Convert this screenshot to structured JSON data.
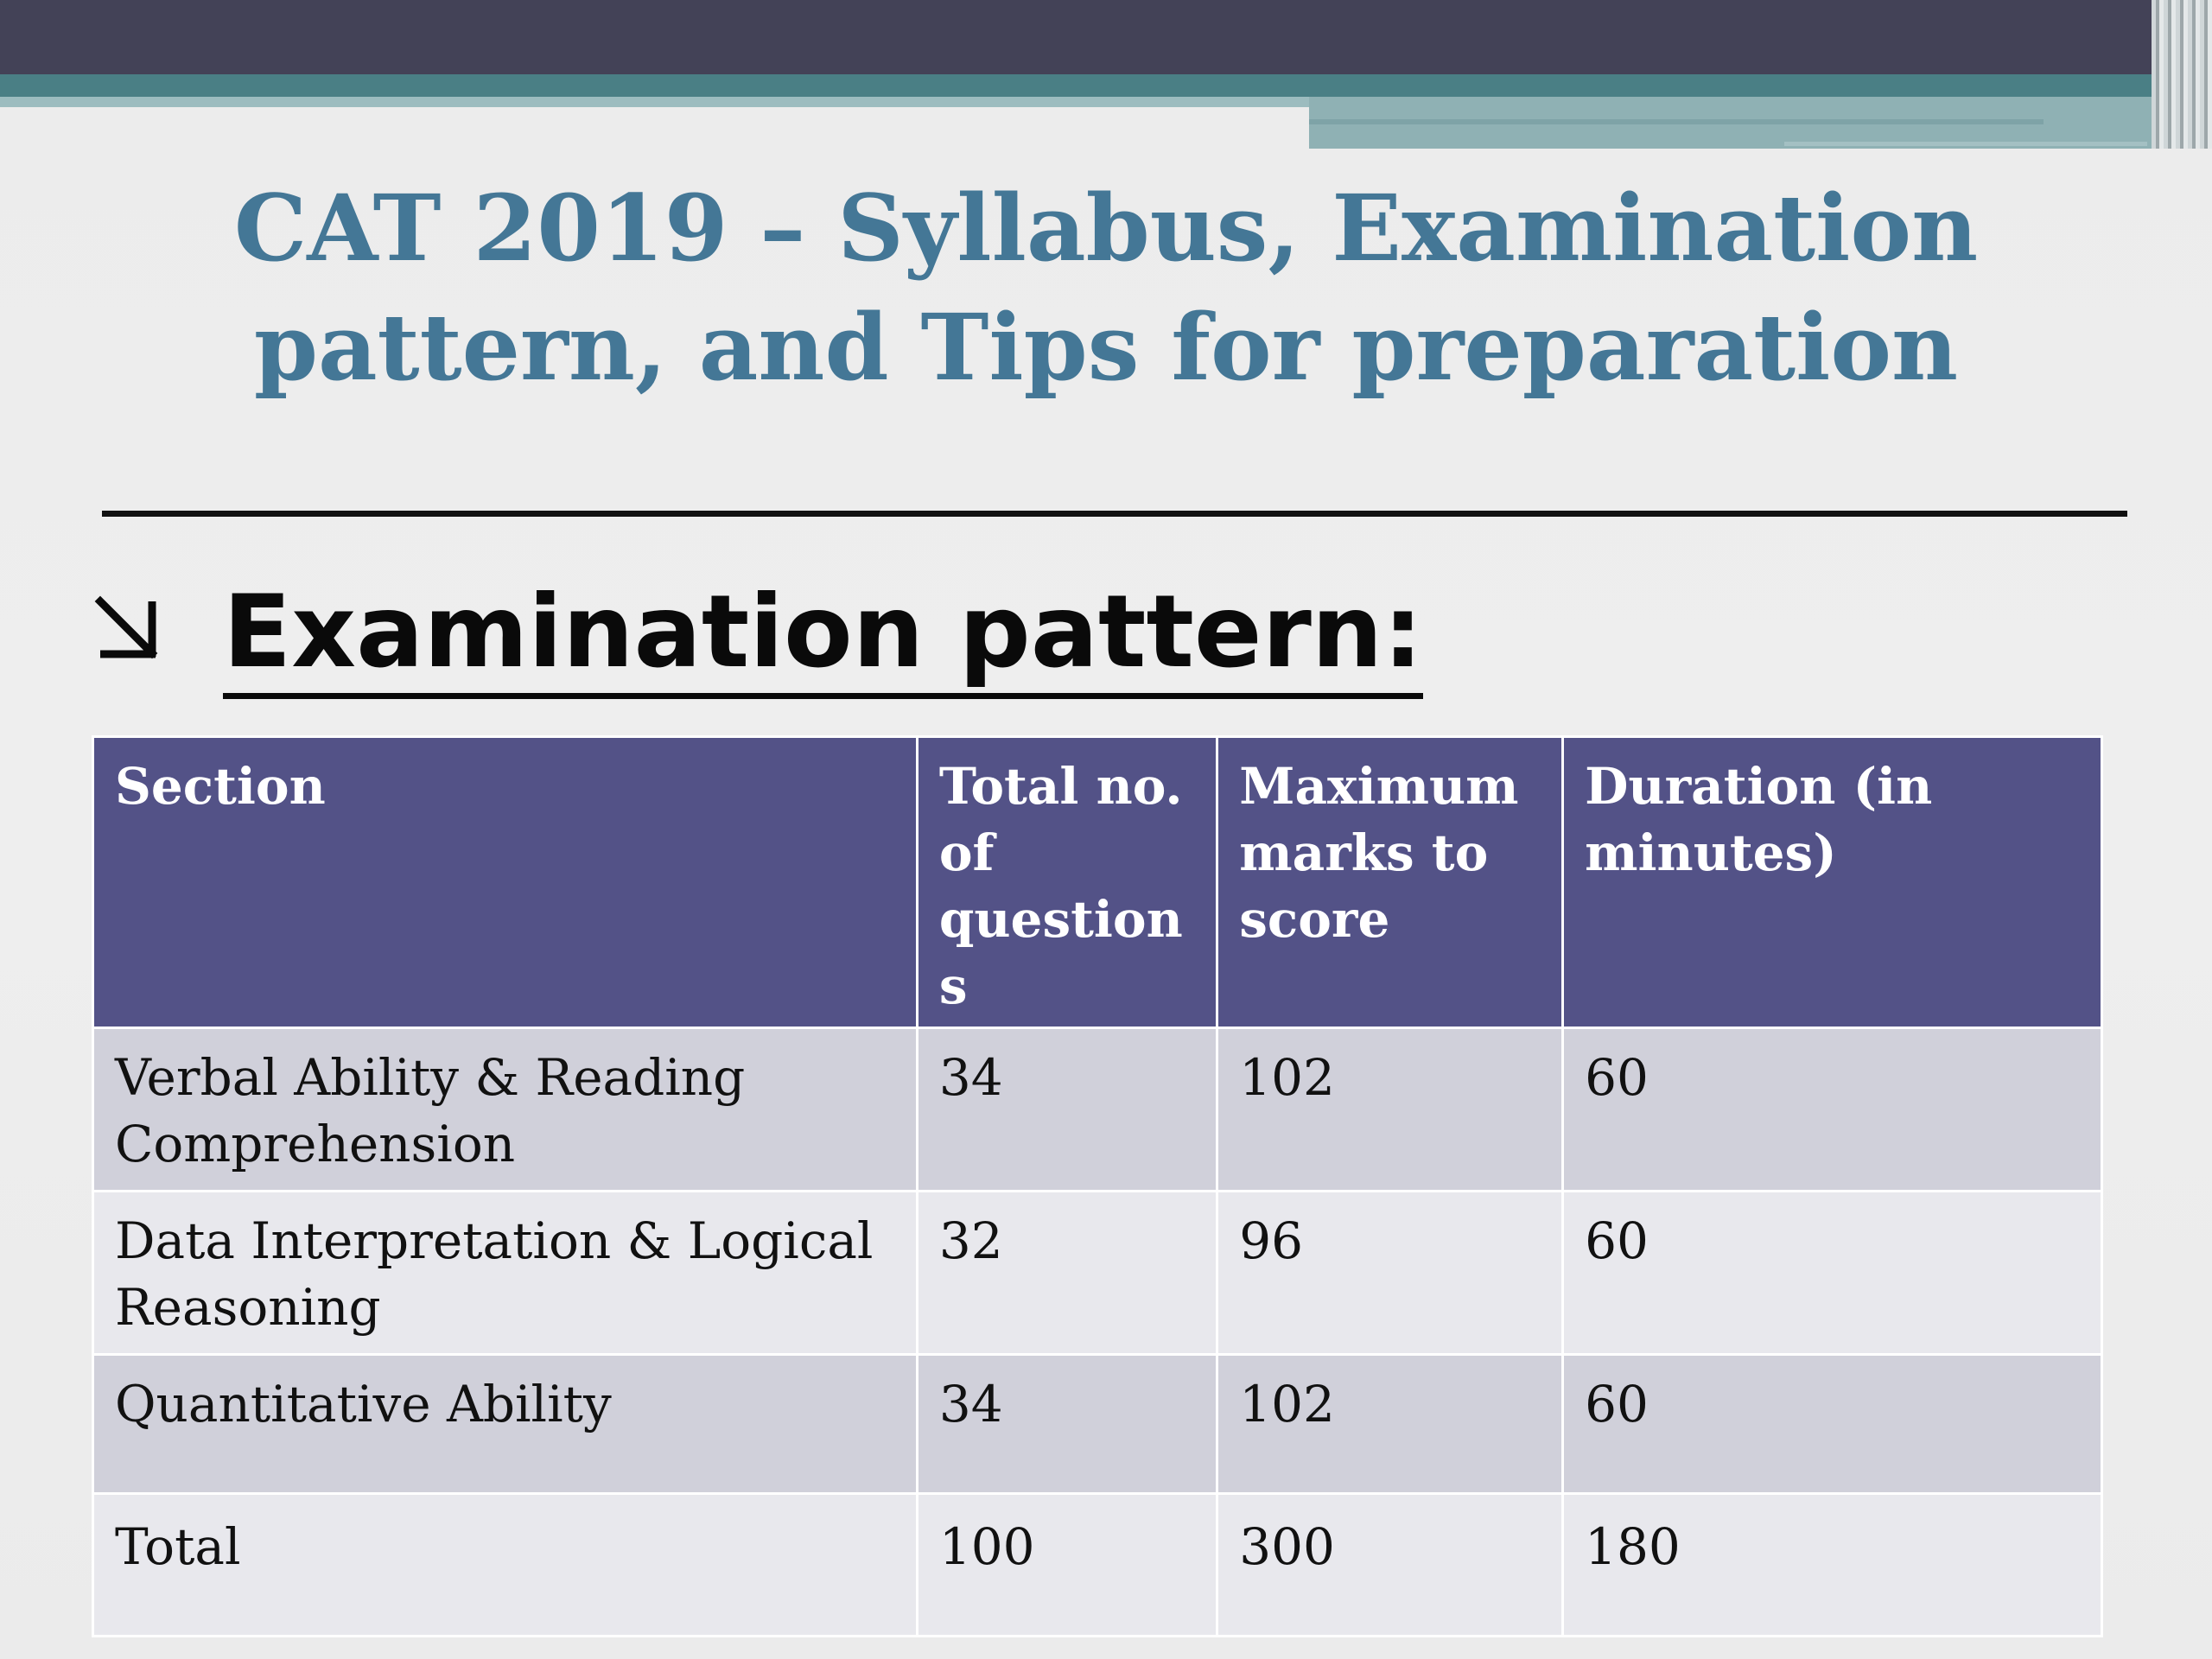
{
  "slide": {
    "title": "CAT 2019 – Syllabus, Examination pattern, and Tips for preparation",
    "heading": "Examination pattern:"
  },
  "table": {
    "headers": [
      "Section",
      "Total no. of question s",
      "Maximum marks to score",
      "Duration (in minutes)"
    ],
    "rows": [
      {
        "section": "Verbal Ability & Reading Comprehension",
        "questions": "34",
        "marks": "102",
        "duration": "60"
      },
      {
        "section": "Data Interpretation & Logical Reasoning",
        "questions": "32",
        "marks": "96",
        "duration": "60"
      },
      {
        "section": "Quantitative Ability",
        "questions": "34",
        "marks": "102",
        "duration": "60"
      },
      {
        "section": "Total",
        "questions": "100",
        "marks": "300",
        "duration": "180"
      }
    ]
  },
  "colors": {
    "title": "#447796",
    "header_bg": "#535287",
    "row_dark": "#d0d0da",
    "row_light": "#e8e8ed",
    "top_band": "#434257",
    "teal": "#4a7f85"
  },
  "icons": {
    "bullet": "arrow-down-right-icon"
  }
}
